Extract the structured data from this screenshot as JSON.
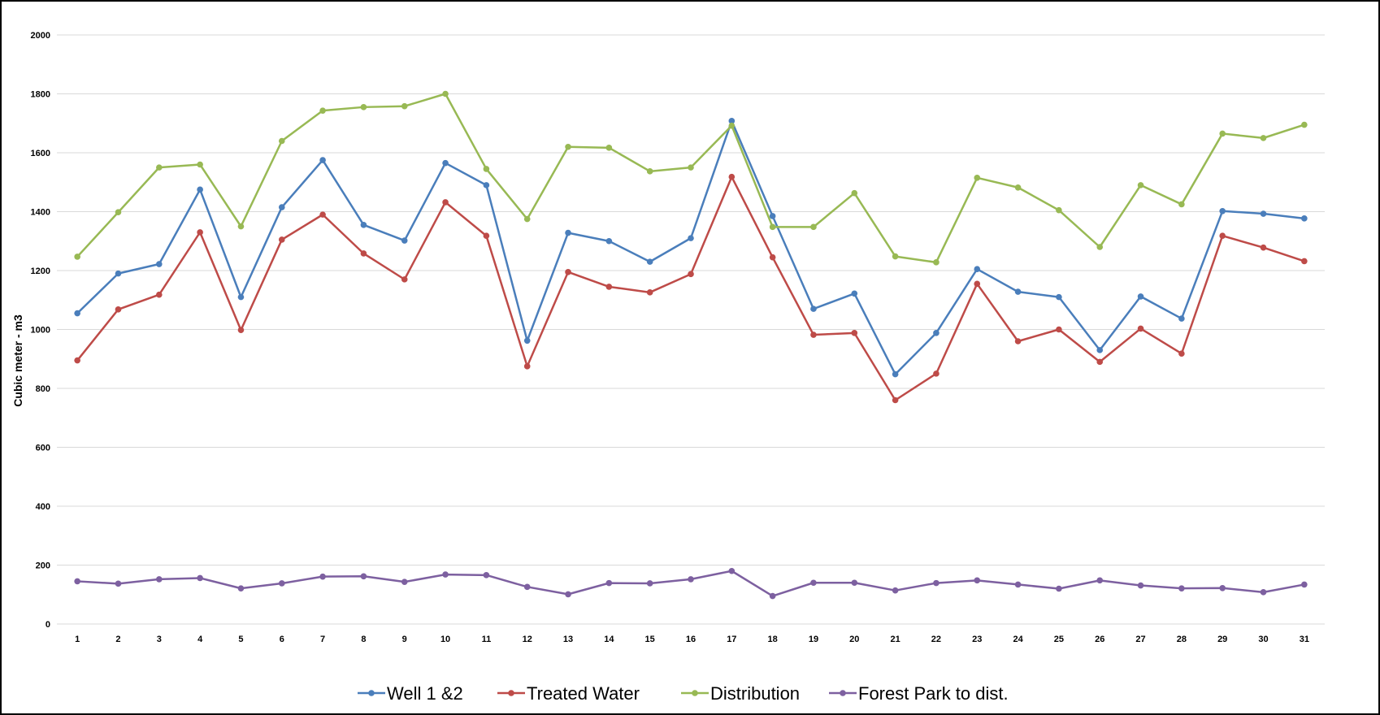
{
  "chart_data": {
    "type": "line",
    "title": "",
    "xlabel": "",
    "ylabel": "Cubic meter - m3",
    "ylim": [
      0,
      2000
    ],
    "yticks": [
      0,
      200,
      400,
      600,
      800,
      1000,
      1200,
      1400,
      1600,
      1800,
      2000
    ],
    "grid": true,
    "legend_position": "bottom",
    "x": [
      "1",
      "2",
      "3",
      "4",
      "5",
      "6",
      "7",
      "8",
      "9",
      "10",
      "11",
      "12",
      "13",
      "14",
      "15",
      "16",
      "17",
      "18",
      "19",
      "20",
      "21",
      "22",
      "23",
      "24",
      "25",
      "26",
      "27",
      "28",
      "29",
      "30",
      "31"
    ],
    "series": [
      {
        "name": "Well 1 &2",
        "color": "#4a7ebb",
        "values": [
          1055,
          1190,
          1222,
          1475,
          1110,
          1415,
          1575,
          1355,
          1302,
          1565,
          1490,
          962,
          1328,
          1300,
          1230,
          1310,
          1708,
          1385,
          1070,
          1122,
          848,
          988,
          1205,
          1128,
          1110,
          930,
          1112,
          1037,
          1402,
          1393,
          1377
        ]
      },
      {
        "name": "Treated Water",
        "color": "#be4b48",
        "values": [
          895,
          1068,
          1118,
          1330,
          998,
          1305,
          1390,
          1258,
          1170,
          1432,
          1318,
          875,
          1195,
          1145,
          1126,
          1188,
          1518,
          1245,
          982,
          988,
          760,
          850,
          1155,
          960,
          1000,
          890,
          1003,
          918,
          1318,
          1278,
          1232
        ]
      },
      {
        "name": "Distribution",
        "color": "#98b954",
        "values": [
          1247,
          1398,
          1550,
          1560,
          1350,
          1640,
          1743,
          1755,
          1758,
          1800,
          1545,
          1375,
          1620,
          1617,
          1537,
          1550,
          1692,
          1348,
          1348,
          1463,
          1248,
          1228,
          1515,
          1482,
          1405,
          1280,
          1490,
          1425,
          1665,
          1650,
          1695
        ]
      },
      {
        "name": "Forest Park to dist.",
        "color": "#7d60a0",
        "values": [
          145,
          137,
          152,
          156,
          121,
          138,
          161,
          162,
          143,
          168,
          166,
          126,
          101,
          139,
          138,
          152,
          180,
          95,
          140,
          140,
          114,
          139,
          148,
          134,
          120,
          148,
          131,
          121,
          122,
          108,
          134
        ]
      }
    ]
  }
}
